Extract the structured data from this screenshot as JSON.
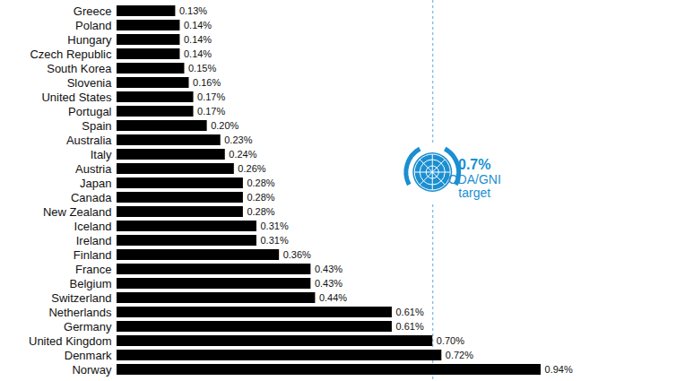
{
  "chart_data": {
    "type": "bar",
    "orientation": "horizontal",
    "categories": [
      "Greece",
      "Poland",
      "Hungary",
      "Czech Republic",
      "South Korea",
      "Slovenia",
      "United States",
      "Portugal",
      "Spain",
      "Australia",
      "Italy",
      "Austria",
      "Japan",
      "Canada",
      "New Zealand",
      "Iceland",
      "Ireland",
      "Finland",
      "France",
      "Belgium",
      "Switzerland",
      "Netherlands",
      "Germany",
      "United Kingdom",
      "Denmark",
      "Norway"
    ],
    "values": [
      0.13,
      0.14,
      0.14,
      0.14,
      0.15,
      0.16,
      0.17,
      0.17,
      0.2,
      0.23,
      0.24,
      0.26,
      0.28,
      0.28,
      0.28,
      0.31,
      0.31,
      0.36,
      0.43,
      0.43,
      0.44,
      0.61,
      0.61,
      0.7,
      0.72,
      0.94
    ],
    "value_labels": [
      "0.13%",
      "0.14%",
      "0.14%",
      "0.14%",
      "0.15%",
      "0.16%",
      "0.17%",
      "0.17%",
      "0.20%",
      "0.23%",
      "0.24%",
      "0.26%",
      "0.28%",
      "0.28%",
      "0.28%",
      "0.31%",
      "0.31%",
      "0.36%",
      "0.43%",
      "0.43%",
      "0.44%",
      "0.61%",
      "0.61%",
      "0.70%",
      "0.72%",
      "0.94%"
    ],
    "color": "#000000",
    "xlim": [
      0,
      1.24
    ],
    "tick_labels": "y",
    "data_labels": true,
    "annotations": [
      {
        "x": 0.7,
        "label": "0.7%",
        "text": "ODA/GNI target"
      }
    ]
  }
}
